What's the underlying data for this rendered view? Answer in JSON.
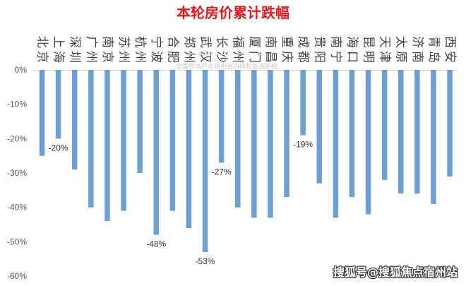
{
  "watermark": "全国房地产市场机会与风险监测系统",
  "credit": "搜狐号@搜狐焦点宿州站",
  "colors": {
    "title": "#e8161c",
    "bar": "#6d9fd3",
    "axis_line": "#d9d9d9"
  },
  "chart_data": {
    "type": "bar",
    "title": "本轮房价累计跌幅",
    "categories": [
      "北京",
      "上海",
      "深圳",
      "广州",
      "南京",
      "苏州",
      "杭州",
      "宁波",
      "合肥",
      "郑州",
      "武汉",
      "长沙",
      "福州",
      "厦门",
      "南昌",
      "重庆",
      "成都",
      "贵阳",
      "南宁",
      "海口",
      "昆明",
      "天津",
      "太原",
      "济南",
      "青岛",
      "西安"
    ],
    "values": [
      -25,
      -20,
      -29,
      -40,
      -44,
      -41,
      -30,
      -48,
      -41,
      -46,
      -53,
      -27,
      -40,
      -43,
      -43,
      -37,
      -19,
      -33,
      -43,
      -37,
      -42,
      -32,
      -36,
      -36,
      -39,
      -31
    ],
    "data_labels": [
      null,
      "-20%",
      null,
      null,
      null,
      null,
      null,
      "-48%",
      null,
      null,
      "-53%",
      "-27%",
      null,
      null,
      null,
      null,
      "-19%",
      null,
      null,
      null,
      null,
      null,
      null,
      null,
      null,
      null
    ],
    "ylim": [
      -60,
      0
    ],
    "yticks": [
      0,
      -10,
      -20,
      -30,
      -40,
      -50,
      -60
    ],
    "ytick_labels": [
      "0%",
      "-10%",
      "-20%",
      "-30%",
      "-40%",
      "-50%",
      "-60%"
    ],
    "grid": false,
    "legend": false
  }
}
